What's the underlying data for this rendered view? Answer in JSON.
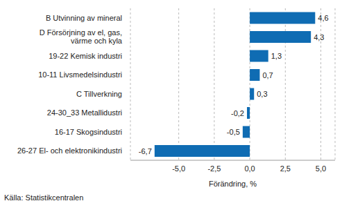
{
  "chart_data": {
    "type": "bar",
    "orientation": "horizontal",
    "categories": [
      "B Utvinning av mineral",
      "D Försörjning av el, gas,\nvärme och kyla",
      "19-22 Kemisk industri",
      "10-11 Livsmedelsindustri",
      "C Tillverkning",
      "24-30_33 Metallidustri",
      "16-17 Skogsindustri",
      "26-27 El- och elektronikindustri"
    ],
    "values": [
      4.6,
      4.3,
      1.3,
      0.7,
      0.3,
      -0.2,
      -0.5,
      -6.7
    ],
    "value_labels": [
      "4,6",
      "4,3",
      "1,3",
      "0,7",
      "0,3",
      "-0,2",
      "-0,5",
      "-6,7"
    ],
    "data_labels": true,
    "color": "#0f6cb3",
    "x_label": "Förändring, %",
    "xlim": [
      -8.4,
      6
    ],
    "xticks": [
      {
        "value": -5,
        "label": "-5,0"
      },
      {
        "value": -2.5,
        "label": "-2,5"
      },
      {
        "value": 0,
        "label": "0,0"
      },
      {
        "value": 2.5,
        "label": "2,5"
      },
      {
        "value": 5,
        "label": "5,0"
      }
    ],
    "grid": true,
    "annotations": [
      "Källa: Statistikcentralen"
    ]
  }
}
